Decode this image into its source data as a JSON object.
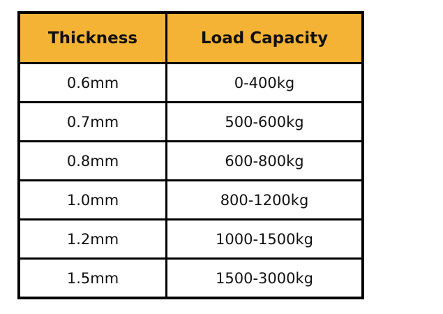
{
  "table": {
    "header_color": "#F5B335",
    "columns": [
      "Thickness",
      "Load Capacity"
    ],
    "rows": [
      [
        "0.6mm",
        "0-400kg"
      ],
      [
        "0.7mm",
        "500-600kg"
      ],
      [
        "0.8mm",
        "600-800kg"
      ],
      [
        "1.0mm",
        "800-1200kg"
      ],
      [
        "1.2mm",
        "1000-1500kg"
      ],
      [
        "1.5mm",
        "1500-3000kg"
      ]
    ]
  }
}
